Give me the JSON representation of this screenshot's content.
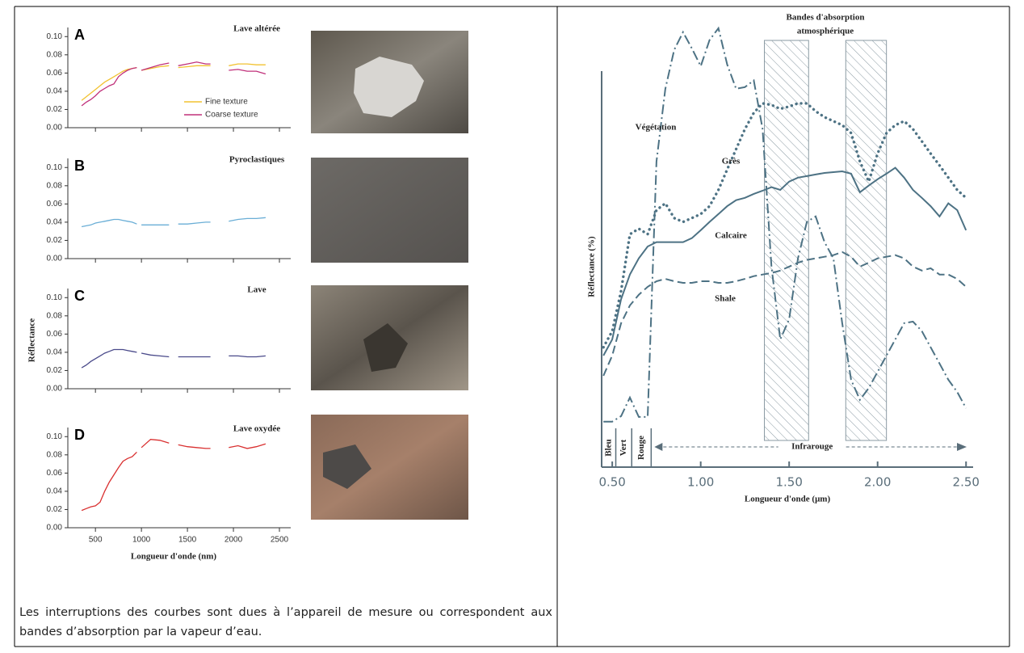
{
  "chart_data": [
    {
      "type": "line",
      "label": "A",
      "title": "Lave altérée",
      "x": [
        350,
        400,
        450,
        500,
        550,
        600,
        650,
        700,
        750,
        800,
        850,
        900,
        950,
        975,
        1000,
        1100,
        1200,
        1300,
        1350,
        1400,
        1500,
        1600,
        1700,
        1750,
        1850,
        1950,
        2050,
        2150,
        2250,
        2350
      ],
      "series": [
        {
          "name": "Fine texture",
          "color": "#f2c230",
          "values": [
            0.03,
            0.034,
            0.038,
            0.042,
            0.046,
            0.05,
            0.053,
            0.056,
            0.059,
            0.062,
            0.064,
            0.065,
            0.066,
            null,
            0.063,
            0.065,
            0.067,
            0.068,
            null,
            0.066,
            0.067,
            0.068,
            0.068,
            0.068,
            null,
            0.068,
            0.07,
            0.07,
            0.069,
            0.069
          ]
        },
        {
          "name": "Coarse texture",
          "color": "#c0307a",
          "values": [
            0.024,
            0.028,
            0.031,
            0.035,
            0.04,
            0.043,
            0.046,
            0.048,
            0.056,
            0.06,
            0.063,
            0.065,
            0.066,
            null,
            0.063,
            0.066,
            0.069,
            0.071,
            null,
            0.068,
            0.07,
            0.072,
            0.07,
            0.07,
            null,
            0.063,
            0.064,
            0.062,
            0.062,
            0.059
          ]
        }
      ],
      "legend": "lower right",
      "xlim": [
        200,
        2500
      ],
      "ylim": [
        0,
        0.11
      ],
      "yticks": [
        {
          "value": 0,
          "label": "0.00"
        },
        {
          "value": 0.02,
          "label": "0.02"
        },
        {
          "value": 0.04,
          "label": "0.04"
        },
        {
          "value": 0.06,
          "label": "0.06"
        },
        {
          "value": 0.08,
          "label": "0.08"
        },
        {
          "value": 0.1,
          "label": "0.10"
        }
      ],
      "xticks": [
        500,
        1000,
        1500,
        2000,
        2500
      ],
      "xtick_labels": false
    },
    {
      "type": "line",
      "label": "B",
      "title": "Pyroclastiques",
      "x": [
        350,
        400,
        450,
        500,
        550,
        600,
        650,
        700,
        750,
        800,
        850,
        900,
        950,
        975,
        1000,
        1100,
        1200,
        1300,
        1350,
        1400,
        1500,
        1600,
        1700,
        1750,
        1850,
        1950,
        2050,
        2150,
        2250,
        2350
      ],
      "series": [
        {
          "color": "#6aaed6",
          "values": [
            0.035,
            0.036,
            0.037,
            0.039,
            0.04,
            0.041,
            0.042,
            0.043,
            0.043,
            0.042,
            0.041,
            0.04,
            0.038,
            null,
            0.037,
            0.037,
            0.037,
            0.037,
            null,
            0.038,
            0.038,
            0.039,
            0.04,
            0.04,
            null,
            0.041,
            0.043,
            0.044,
            0.044,
            0.045
          ]
        }
      ],
      "xlim": [
        200,
        2500
      ],
      "ylim": [
        0,
        0.11
      ],
      "yticks": [
        {
          "value": 0,
          "label": "0.00"
        },
        {
          "value": 0.02,
          "label": "0.02"
        },
        {
          "value": 0.04,
          "label": "0.04"
        },
        {
          "value": 0.06,
          "label": "0.06"
        },
        {
          "value": 0.08,
          "label": "0.08"
        },
        {
          "value": 0.1,
          "label": "0.10"
        }
      ],
      "xticks": [
        500,
        1000,
        1500,
        2000,
        2500
      ],
      "xtick_labels": false
    },
    {
      "type": "line",
      "label": "C",
      "title": "Lave",
      "ylabel": "Réflectance",
      "x": [
        350,
        400,
        450,
        500,
        550,
        600,
        650,
        700,
        750,
        800,
        850,
        900,
        950,
        975,
        1000,
        1100,
        1200,
        1300,
        1350,
        1400,
        1500,
        1600,
        1700,
        1750,
        1850,
        1950,
        2050,
        2150,
        2250,
        2350
      ],
      "series": [
        {
          "color": "#4a4a8a",
          "values": [
            0.023,
            0.026,
            0.03,
            0.033,
            0.036,
            0.039,
            0.041,
            0.043,
            0.043,
            0.043,
            0.042,
            0.041,
            0.04,
            null,
            0.039,
            0.037,
            0.036,
            0.035,
            null,
            0.035,
            0.035,
            0.035,
            0.035,
            0.035,
            null,
            0.036,
            0.036,
            0.035,
            0.035,
            0.036
          ]
        }
      ],
      "xlim": [
        200,
        2500
      ],
      "ylim": [
        0,
        0.11
      ],
      "yticks": [
        {
          "value": 0,
          "label": "0.00"
        },
        {
          "value": 0.02,
          "label": "0.02"
        },
        {
          "value": 0.04,
          "label": "0.04"
        },
        {
          "value": 0.06,
          "label": "0.06"
        },
        {
          "value": 0.08,
          "label": "0.08"
        },
        {
          "value": 0.1,
          "label": "0.10"
        }
      ],
      "xticks": [
        500,
        1000,
        1500,
        2000,
        2500
      ],
      "xtick_labels": false
    },
    {
      "type": "line",
      "label": "D",
      "title": "Lave oxydée",
      "xlabel": "Longueur d'onde (nm)",
      "x": [
        350,
        400,
        450,
        500,
        550,
        600,
        650,
        700,
        750,
        800,
        850,
        900,
        950,
        975,
        1000,
        1100,
        1200,
        1300,
        1350,
        1400,
        1500,
        1600,
        1700,
        1750,
        1850,
        1950,
        2050,
        2150,
        2250,
        2350
      ],
      "series": [
        {
          "color": "#d93030",
          "values": [
            0.019,
            0.021,
            0.023,
            0.024,
            0.028,
            0.04,
            0.05,
            0.058,
            0.066,
            0.073,
            0.076,
            0.078,
            0.083,
            null,
            0.088,
            0.097,
            0.096,
            0.093,
            null,
            0.091,
            0.089,
            0.088,
            0.087,
            0.087,
            null,
            0.088,
            0.09,
            0.087,
            0.089,
            0.092
          ]
        }
      ],
      "xlim": [
        200,
        2500
      ],
      "ylim": [
        0,
        0.11
      ],
      "yticks": [
        {
          "value": 0,
          "label": "0.00"
        },
        {
          "value": 0.02,
          "label": "0.02"
        },
        {
          "value": 0.04,
          "label": "0.04"
        },
        {
          "value": 0.06,
          "label": "0.06"
        },
        {
          "value": 0.08,
          "label": "0.08"
        },
        {
          "value": 0.1,
          "label": "0.10"
        }
      ],
      "xticks": [
        500,
        1000,
        1500,
        2000,
        2500
      ],
      "xtick_labels": true
    },
    {
      "type": "spectral",
      "ylabel": "Réflectance (%)",
      "xlabel": "Longueur d'onde (μm)",
      "x": [
        0.45,
        0.5,
        0.55,
        0.6,
        0.65,
        0.7,
        0.75,
        0.8,
        0.85,
        0.9,
        0.95,
        1.0,
        1.05,
        1.1,
        1.15,
        1.2,
        1.25,
        1.3,
        1.35,
        1.4,
        1.45,
        1.5,
        1.55,
        1.6,
        1.65,
        1.7,
        1.75,
        1.8,
        1.85,
        1.9,
        1.95,
        2.0,
        2.05,
        2.1,
        2.15,
        2.2,
        2.25,
        2.3,
        2.35,
        2.4,
        2.45,
        2.5
      ],
      "series": [
        {
          "name": "Végétation",
          "color": "#4d7284",
          "style": "dashdot",
          "values": [
            11.5,
            11.5,
            12.9,
            17.6,
            12.7,
            12.7,
            77.3,
            95.7,
            105.5,
            110.0,
            105.9,
            101.4,
            108.0,
            111.0,
            101.8,
            95.7,
            96.1,
            97.8,
            85.5,
            50.7,
            32.3,
            37.4,
            52.8,
            62.0,
            63.4,
            56.9,
            52.8,
            36.4,
            22.1,
            17.0,
            20.0,
            24.1,
            28.2,
            32.3,
            36.4,
            36.8,
            34.4,
            30.3,
            26.2,
            22.1,
            19.0,
            14.9
          ]
        },
        {
          "name": "Grès",
          "color": "#4d7284",
          "style": "dotted",
          "values": [
            30.3,
            34.4,
            44.6,
            58.9,
            60.3,
            58.9,
            65.0,
            66.7,
            63.0,
            62.0,
            63.0,
            64.0,
            66.0,
            70.1,
            75.3,
            80.4,
            85.5,
            89.6,
            92.0,
            91.6,
            90.6,
            91.2,
            92.0,
            92.0,
            90.0,
            88.5,
            87.5,
            86.5,
            84.5,
            77.3,
            72.2,
            79.3,
            84.5,
            86.5,
            87.5,
            85.5,
            82.4,
            79.3,
            76.3,
            73.2,
            70.1,
            68.1
          ]
        },
        {
          "name": "Calcaire",
          "color": "#4d7284",
          "style": "solid",
          "values": [
            28.2,
            32.3,
            42.5,
            48.7,
            52.8,
            55.8,
            56.9,
            56.9,
            56.9,
            56.9,
            57.9,
            59.9,
            62.0,
            64.0,
            66.0,
            67.5,
            68.1,
            69.1,
            69.9,
            70.8,
            70.1,
            72.2,
            73.2,
            73.6,
            74.0,
            74.4,
            74.6,
            74.8,
            74.2,
            69.5,
            71.2,
            72.8,
            74.2,
            75.7,
            73.2,
            70.1,
            68.1,
            66.0,
            63.4,
            66.7,
            65.0,
            59.9
          ]
        },
        {
          "name": "Shale",
          "color": "#4d7284",
          "style": "dashed",
          "values": [
            23.1,
            28.2,
            36.4,
            40.9,
            43.6,
            45.6,
            47.0,
            47.6,
            47.0,
            46.6,
            46.6,
            47.0,
            47.0,
            46.6,
            46.6,
            47.0,
            47.6,
            48.3,
            48.7,
            49.1,
            49.7,
            50.7,
            51.7,
            52.4,
            52.8,
            53.2,
            53.6,
            54.4,
            53.2,
            50.7,
            51.7,
            52.8,
            53.2,
            53.6,
            52.8,
            50.7,
            49.7,
            50.3,
            48.7,
            48.7,
            47.6,
            45.6
          ]
        }
      ],
      "xlim": [
        0.44,
        2.54
      ],
      "ylim": [
        0,
        112
      ],
      "xticks": [
        {
          "value": 0.5,
          "label": "0.50"
        },
        {
          "value": 1.0,
          "label": "1.00"
        },
        {
          "value": 1.5,
          "label": "1.50"
        },
        {
          "value": 2.0,
          "label": "2.00"
        },
        {
          "value": 2.5,
          "label": "2.50"
        }
      ],
      "bands": [
        [
          1.36,
          1.61
        ],
        [
          1.82,
          2.05
        ]
      ],
      "bands_label": [
        "Bandes d'absorption",
        "atmosphérique"
      ],
      "regions": [
        {
          "label": "Bleu",
          "range": [
            0.44,
            0.52
          ]
        },
        {
          "label": "Vert",
          "range": [
            0.52,
            0.61
          ]
        },
        {
          "label": "Rouge",
          "range": [
            0.61,
            0.72
          ]
        },
        {
          "label": "Infrarouge",
          "range": [
            0.72,
            2.54
          ]
        }
      ]
    }
  ],
  "caption": "Les interruptions des courbes sont dues à l’appareil de mesure ou correspondent aux bandes d’absorption par la vapeur d’eau."
}
